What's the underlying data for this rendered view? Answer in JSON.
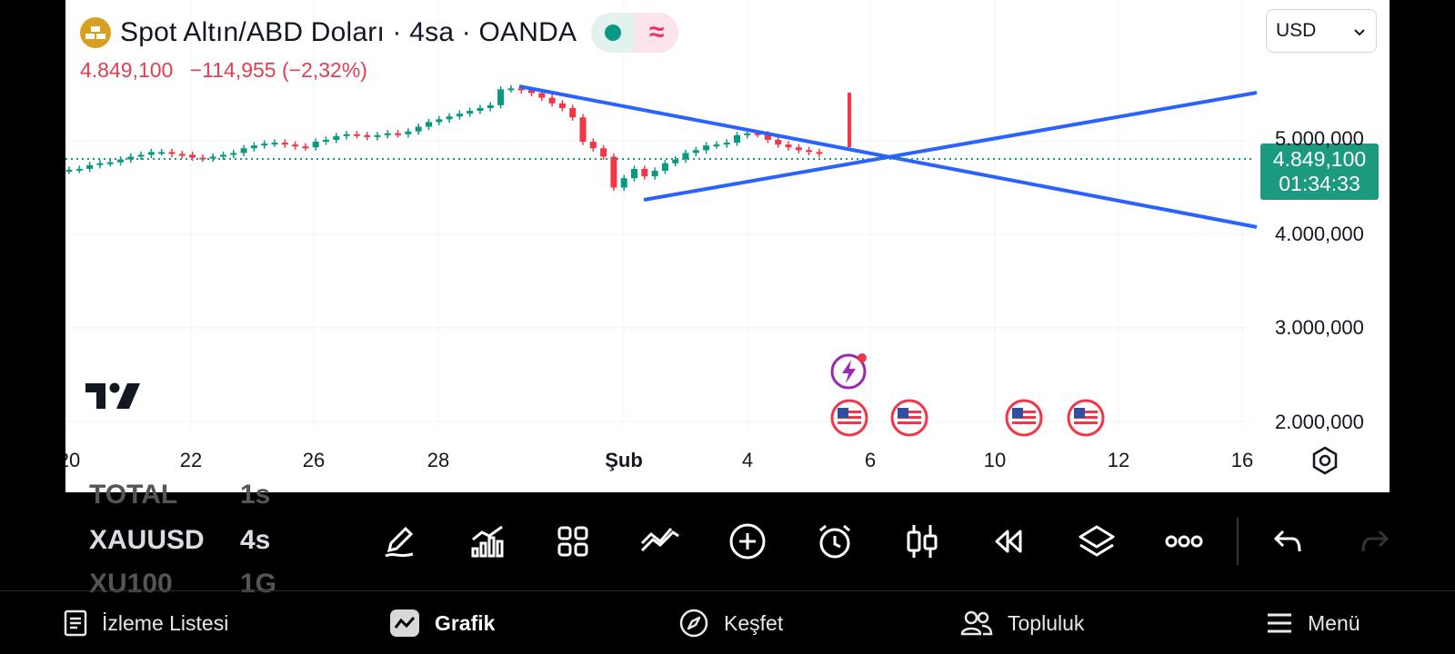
{
  "chart": {
    "title": "Spot Altın/ABD Doları · 4sa · OANDA",
    "price": "4.849,100",
    "change": "−114,955 (−2,32%)",
    "currency": "USD",
    "last_price_tag": "4.849,100",
    "countdown": "01:34:33",
    "y_labels": [
      "5.000,000",
      "4.000,000",
      "3.000,000",
      "2.000,000"
    ],
    "x_labels": [
      "20",
      "22",
      "26",
      "28",
      "Şub",
      "4",
      "6",
      "10",
      "12",
      "16"
    ],
    "colors": {
      "up": "#089981",
      "down": "#f23645",
      "trendline": "#2962ff"
    }
  },
  "chart_data": {
    "type": "candlestick",
    "symbol": "XAUUSD",
    "interval": "4s",
    "ylim": [
      1850,
      6200
    ],
    "y_ticks": [
      2000,
      3000,
      4000,
      5000
    ],
    "last_price": 4849.1,
    "candles_close": [
      4690,
      4700,
      4740,
      4760,
      4770,
      4800,
      4830,
      4850,
      4880,
      4880,
      4860,
      4850,
      4820,
      4810,
      4830,
      4850,
      4870,
      4920,
      4950,
      4970,
      4980,
      4960,
      4940,
      4930,
      4990,
      5010,
      5050,
      5070,
      5060,
      5040,
      5060,
      5080,
      5070,
      5100,
      5150,
      5200,
      5230,
      5260,
      5290,
      5320,
      5350,
      5380,
      5550,
      5560,
      5540,
      5510,
      5460,
      5400,
      5350,
      5250,
      4990,
      4920,
      4830,
      4500,
      4600,
      4700,
      4620,
      4680,
      4760,
      4800,
      4870,
      4900,
      4950,
      4960,
      4980,
      5060,
      5080,
      5070,
      5010,
      4960,
      4930,
      4900,
      4880,
      4860
    ]
  },
  "watchlist": [
    {
      "symbol": "TOTAL",
      "interval": "1s"
    },
    {
      "symbol": "XAUUSD",
      "interval": "4s"
    },
    {
      "symbol": "XU100",
      "interval": "1G"
    }
  ],
  "toolbar": [
    "pencil-icon",
    "chart-indicators-icon",
    "layout-grid-icon",
    "compare-icon",
    "add-circle-icon",
    "alarm-icon",
    "candles-icon",
    "replay-icon",
    "layers-icon",
    "more-icon",
    "undo-icon",
    "redo-icon"
  ],
  "nav": {
    "watchlist": "İzleme Listesi",
    "chart": "Grafik",
    "explore": "Keşfet",
    "community": "Topluluk",
    "menu": "Menü"
  }
}
